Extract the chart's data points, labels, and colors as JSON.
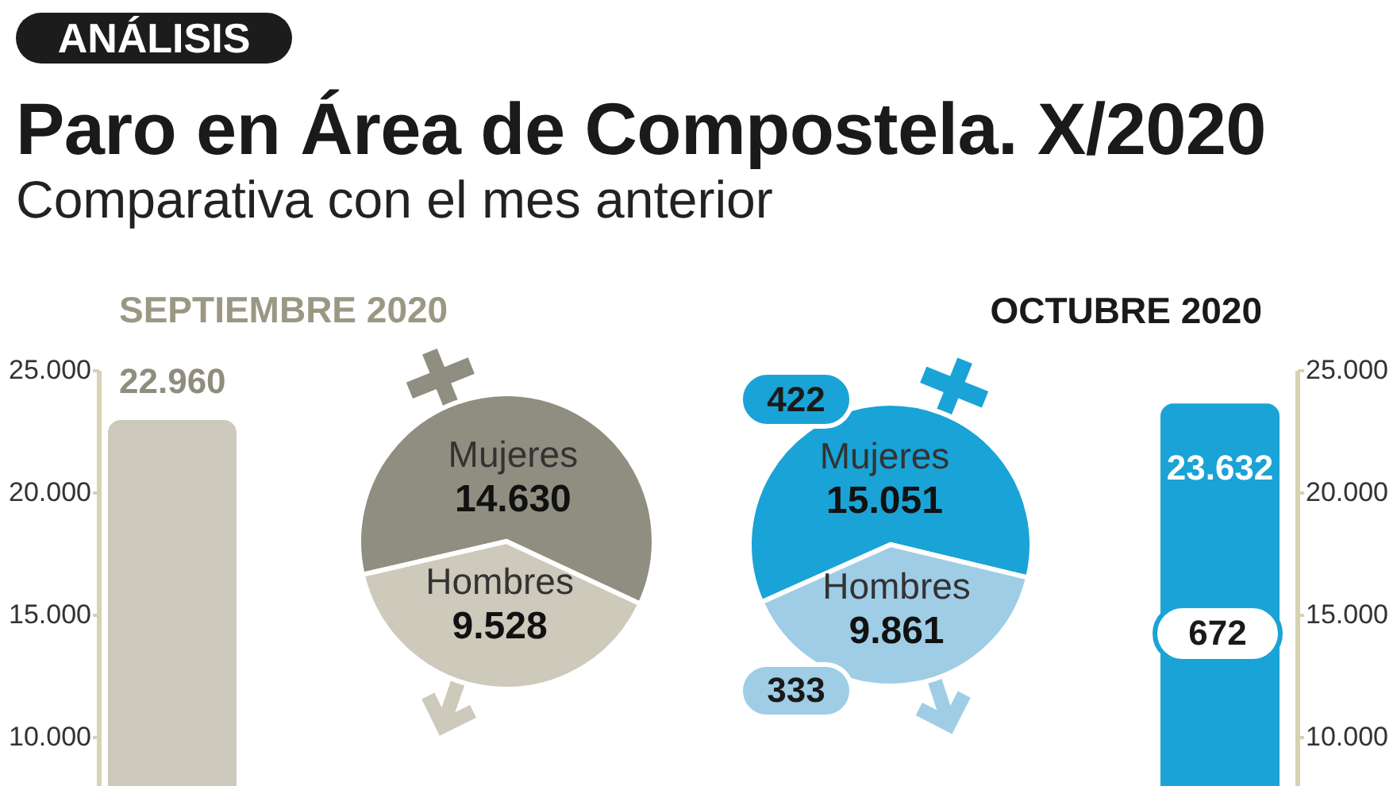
{
  "chart_data": [
    {
      "type": "other",
      "title": "Paro en Área de Compostela. X/2020",
      "subtitle": "Comparativa con el mes anterior",
      "annotations": [
        "ANÁLISIS"
      ]
    },
    {
      "type": "bar",
      "title": "SEPTIEMBRE 2020",
      "categories": [
        null
      ],
      "values": [
        22960
      ],
      "colors": [
        "#cdc9bd"
      ],
      "value_labels": [
        "22.960"
      ],
      "ylim": [
        8000,
        25000
      ],
      "yticks": [
        {
          "value": 10000,
          "label": "10.000"
        },
        {
          "value": 15000,
          "label": "15.000"
        },
        {
          "value": 20000,
          "label": "20.000"
        },
        {
          "value": 25000,
          "label": "25.000"
        }
      ]
    },
    {
      "type": "pie",
      "categories": [
        "Mujeres",
        "Hombres"
      ],
      "values": [
        14630,
        9528
      ],
      "colors": [
        "#8f8e80",
        "#cdc9bb"
      ],
      "value_labels": [
        "14.630",
        "9.528"
      ]
    },
    {
      "type": "pie",
      "categories": [
        "Mujeres",
        "Hombres"
      ],
      "values": [
        15051,
        9861
      ],
      "colors": [
        "#1aa3d6",
        "#9fcde6"
      ],
      "value_labels": [
        "15.051",
        "9.861"
      ],
      "annotations": [
        "422",
        "333"
      ]
    },
    {
      "type": "bar",
      "categories": [
        "OCTUBRE 2020"
      ],
      "values": [
        23632
      ],
      "colors": [
        "#1aa3d6"
      ],
      "value_labels": [
        "23.632"
      ],
      "annotations": [
        "672"
      ],
      "ylim": [
        8000,
        25000
      ],
      "yticks": [
        {
          "value": 10000,
          "label": "10.000"
        },
        {
          "value": 15000,
          "label": "15.000"
        },
        {
          "value": 20000,
          "label": "20.000"
        },
        {
          "value": 25000,
          "label": "25.000"
        }
      ]
    }
  ]
}
